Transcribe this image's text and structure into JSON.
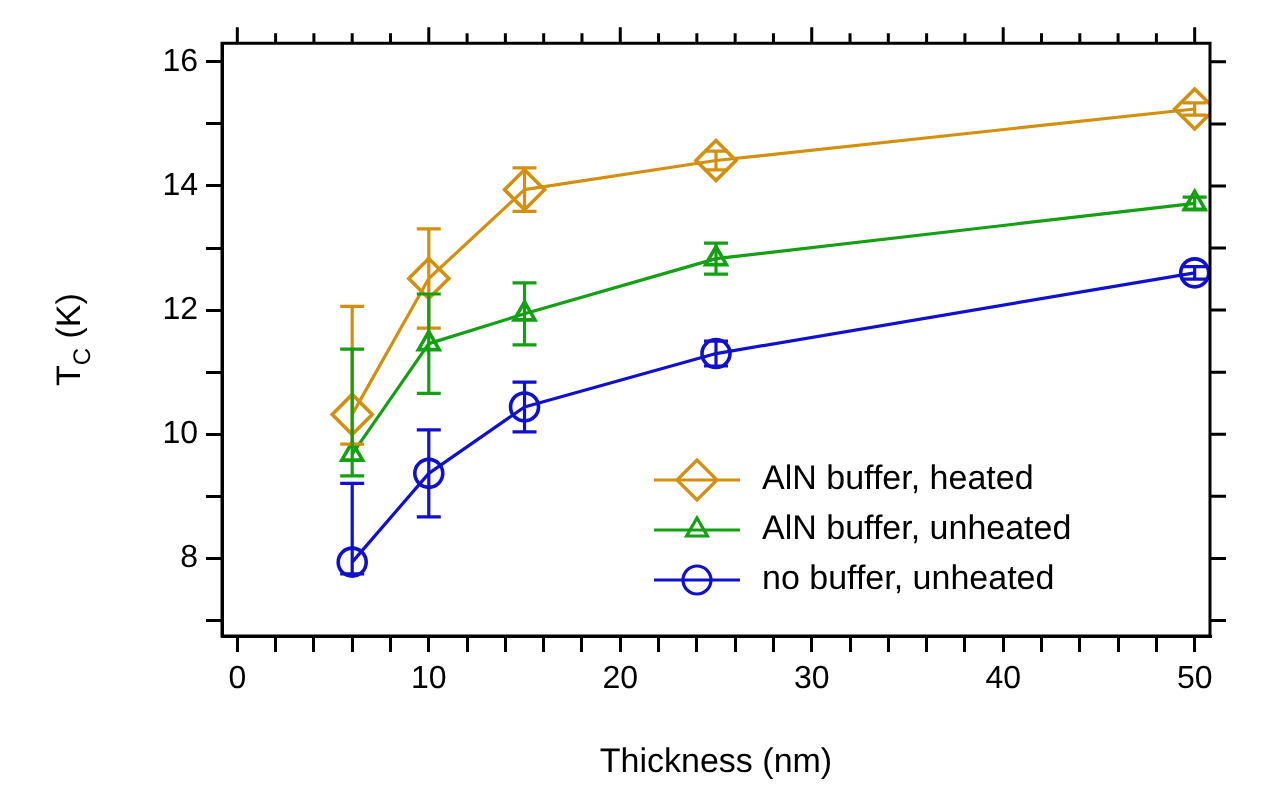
{
  "chart_data": {
    "type": "line",
    "xlabel": "Thickness (nm)",
    "ylabel": "T$_{C}$ (K)",
    "x": [
      6,
      10,
      15,
      25,
      50
    ],
    "series": [
      {
        "name": "AlN buffer, heated",
        "color": "#d4900c",
        "marker": "diamond",
        "values": [
          10.32,
          12.51,
          13.94,
          14.41,
          15.24
        ],
        "errors": [
          [
            9.84,
            12.06
          ],
          0.8,
          0.35,
          0.15,
          0.1
        ]
      },
      {
        "name": "AlN buffer, unheated",
        "color": "#13a013",
        "marker": "triangle",
        "values": [
          9.68,
          11.46,
          11.94,
          12.83,
          13.72
        ],
        "errors": [
          [
            9.33,
            11.37
          ],
          0.8,
          0.5,
          0.25,
          0.1
        ]
      },
      {
        "name": "no buffer, unheated",
        "color": "#1010d0",
        "marker": "circle",
        "values": [
          7.94,
          9.37,
          10.44,
          11.3,
          12.6
        ],
        "errors": [
          [
            7.75,
            9.21
          ],
          0.7,
          0.4,
          0.2,
          0.1
        ]
      }
    ],
    "xlim": [
      -0.8,
      50.8
    ],
    "xticks": [
      0,
      {
        "value": 2,
        "label": null
      },
      {
        "value": 4,
        "label": null
      },
      {
        "value": 6,
        "label": null
      },
      {
        "value": 8,
        "label": null
      },
      10,
      {
        "value": 12,
        "label": null
      },
      {
        "value": 14,
        "label": null
      },
      {
        "value": 16,
        "label": null
      },
      {
        "value": 18,
        "label": null
      },
      20,
      {
        "value": 22,
        "label": null
      },
      {
        "value": 24,
        "label": null
      },
      {
        "value": 26,
        "label": null
      },
      {
        "value": 28,
        "label": null
      },
      30,
      {
        "value": 32,
        "label": null
      },
      {
        "value": 34,
        "label": null
      },
      {
        "value": 36,
        "label": null
      },
      {
        "value": 38,
        "label": null
      },
      40,
      {
        "value": 42,
        "label": null
      },
      {
        "value": 44,
        "label": null
      },
      {
        "value": 46,
        "label": null
      },
      {
        "value": 48,
        "label": null
      },
      50
    ],
    "ylim": [
      6.75,
      16.3
    ],
    "yticks": [
      {
        "value": 7,
        "label": null
      },
      8,
      {
        "value": 9,
        "label": null
      },
      10,
      {
        "value": 11,
        "label": null
      },
      12,
      {
        "value": 13,
        "label": null
      },
      14,
      {
        "value": 15,
        "label": null
      },
      16
    ],
    "grid": false,
    "legend": "bottom right",
    "line_style": "solid"
  }
}
